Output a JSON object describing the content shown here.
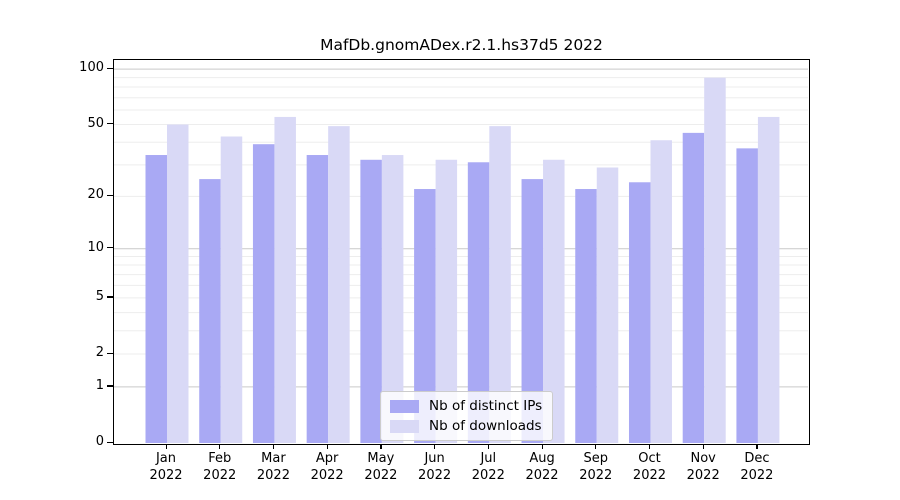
{
  "title": "MafDb.gnomADex.r2.1.hs37d5 2022",
  "chart_data": {
    "type": "bar",
    "title": "MafDb.gnomADex.r2.1.hs37d5 2022",
    "categories": [
      "Jan",
      "Feb",
      "Mar",
      "Apr",
      "May",
      "Jun",
      "Jul",
      "Aug",
      "Sep",
      "Oct",
      "Nov",
      "Dec"
    ],
    "year_label": "2022",
    "series": [
      {
        "name": "Nb of distinct IPs",
        "color": "#a9a9f4",
        "values": [
          34,
          25,
          39,
          34,
          32,
          22,
          31,
          25,
          22,
          24,
          45,
          37
        ]
      },
      {
        "name": "Nb of downloads",
        "color": "#d9d9f6",
        "values": [
          50,
          43,
          55,
          49,
          34,
          32,
          49,
          32,
          29,
          41,
          90,
          55
        ]
      }
    ],
    "xlabel": "",
    "ylabel": "",
    "yscale": "log1p",
    "ylim": [
      0,
      114
    ],
    "yticks": [
      0,
      1,
      2,
      5,
      10,
      20,
      50,
      100
    ],
    "minor_gridlines": [
      2,
      3,
      4,
      5,
      6,
      7,
      8,
      9,
      20,
      30,
      40,
      50,
      60,
      70,
      80,
      90
    ],
    "major_gridlines": [
      1,
      10,
      100
    ],
    "grid": true,
    "legend_position": "lower center",
    "colors": {
      "distinct_ips": "#a9a9f4",
      "downloads": "#d9d9f6",
      "major_grid": "#c9c9c9",
      "minor_grid": "#ededed",
      "axis": "#000000"
    }
  }
}
